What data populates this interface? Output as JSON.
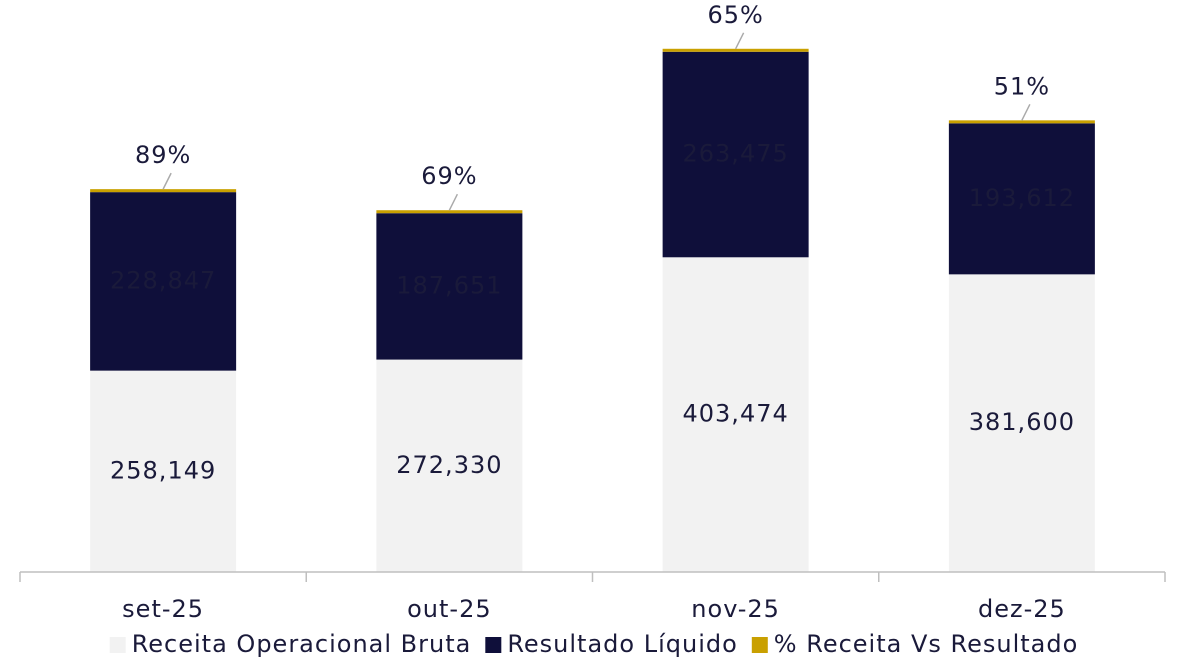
{
  "chart_data": {
    "type": "stacked_bar",
    "categories": [
      "set-25",
      "out-25",
      "nov-25",
      "dez-25"
    ],
    "series": [
      {
        "name": "Receita Operacional Bruta",
        "color": "#f2f2f2",
        "values": [
          258149,
          272330,
          403474,
          381600
        ],
        "value_labels": [
          "258,149",
          "272,330",
          "403,474",
          "381,600"
        ]
      },
      {
        "name": "Resultado Líquido",
        "color": "#0f0f3a",
        "values": [
          228847,
          187651,
          263475,
          193612
        ],
        "value_labels": [
          "228,847",
          "187,651",
          "263,475",
          "193,612"
        ]
      },
      {
        "name": "% Receita Vs Resultado",
        "color": "#c9a000",
        "values": [
          89,
          69,
          65,
          51
        ],
        "value_labels": [
          "89%",
          "69%",
          "65%",
          "51%"
        ]
      }
    ],
    "ylim": [
      0,
      700000
    ]
  }
}
